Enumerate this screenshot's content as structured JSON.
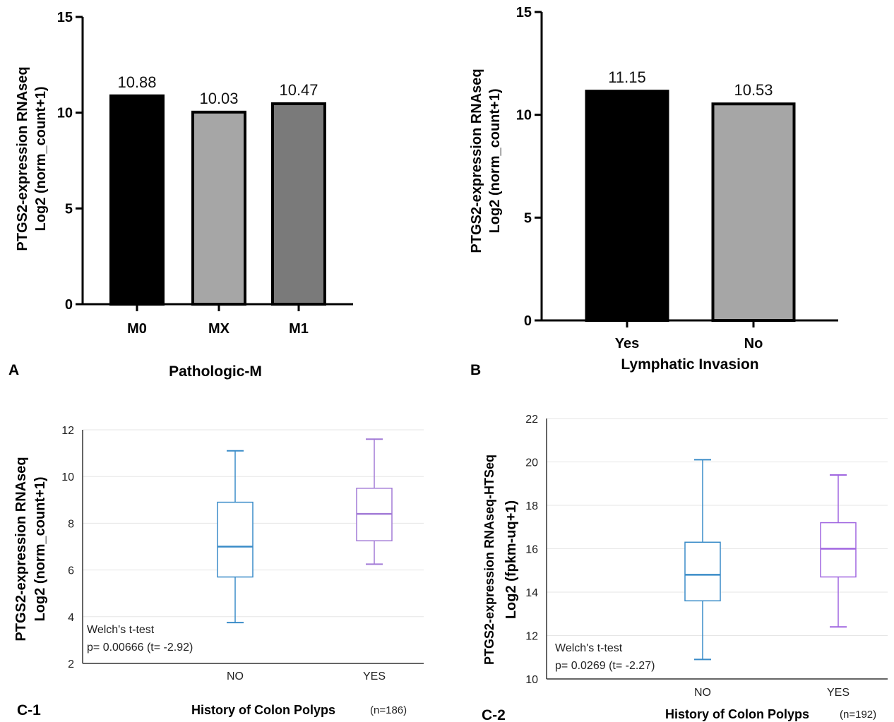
{
  "chart_data": [
    {
      "panel": "A",
      "type": "bar",
      "ylabel": [
        "PTGS2-expression RNAseq",
        "Log2 (norm_count+1)"
      ],
      "xlabel": "Pathologic-M",
      "categories": [
        "M0",
        "MX",
        "M1"
      ],
      "values": [
        10.88,
        10.03,
        10.47
      ],
      "value_labels": [
        "10.88",
        "10.03",
        "10.47"
      ],
      "colors": [
        "#000000",
        "#a6a6a6",
        "#7a7a7a"
      ],
      "ylim": [
        0,
        15
      ],
      "yticks": [
        0,
        5,
        10,
        15
      ]
    },
    {
      "panel": "B",
      "type": "bar",
      "ylabel": [
        "PTGS2-expression RNAseq",
        "Log2 (norm_count+1)"
      ],
      "xlabel": "Lymphatic Invasion",
      "categories": [
        "Yes",
        "No"
      ],
      "values": [
        11.15,
        10.53
      ],
      "value_labels": [
        "11.15",
        "10.53"
      ],
      "colors": [
        "#000000",
        "#a6a6a6"
      ],
      "ylim": [
        0,
        15
      ],
      "yticks": [
        0,
        5,
        10,
        15
      ]
    },
    {
      "panel": "C-1",
      "type": "box",
      "ylabel": [
        "PTGS2-expression RNAseq",
        "Log2 (norm_count+1)"
      ],
      "xlabel": "History of Colon Polyps",
      "n_label": "(n=186)",
      "categories": [
        "NO",
        "YES"
      ],
      "boxes": [
        {
          "min": 3.75,
          "q1": 5.7,
          "median": 7.0,
          "q3": 8.9,
          "max": 11.1,
          "color": "#3a8cc8"
        },
        {
          "min": 6.25,
          "q1": 7.25,
          "median": 8.4,
          "q3": 9.5,
          "max": 11.6,
          "color": "#a27ad6"
        }
      ],
      "ylim": [
        2,
        12
      ],
      "yticks": [
        2,
        4,
        6,
        8,
        10,
        12
      ],
      "test": "Welch's t-test",
      "pvalue": "p= 0.00666 (t= -2.92)"
    },
    {
      "panel": "C-2",
      "type": "box",
      "ylabel": [
        "PTGS2-expression RNAseq-HTSeq",
        "Log2 (fpkm-uq+1)"
      ],
      "xlabel": "History of Colon Polyps",
      "n_label": "(n=192)",
      "categories": [
        "NO",
        "YES"
      ],
      "boxes": [
        {
          "min": 10.9,
          "q1": 13.6,
          "median": 14.8,
          "q3": 16.3,
          "max": 20.1,
          "color": "#3a8cc8"
        },
        {
          "min": 12.4,
          "q1": 14.7,
          "median": 16.0,
          "q3": 17.2,
          "max": 19.4,
          "color": "#a066e0"
        }
      ],
      "ylim": [
        10,
        22
      ],
      "yticks": [
        10,
        12,
        14,
        16,
        18,
        20,
        22
      ],
      "test": "Welch's t-test",
      "pvalue": "p= 0.0269 (t= -2.27)"
    }
  ],
  "panel_labels": [
    "A",
    "B",
    "C-1",
    "C-2"
  ]
}
